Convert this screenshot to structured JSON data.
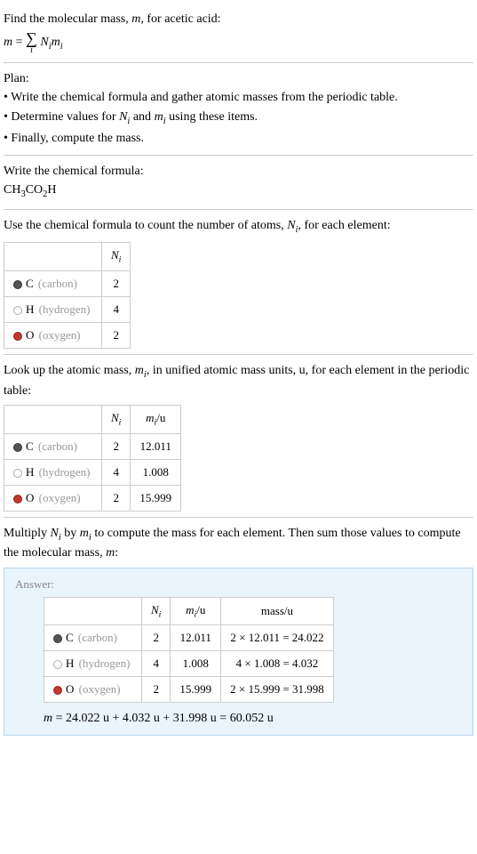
{
  "intro": {
    "prompt": "Find the molecular mass, m, for acetic acid:",
    "formula_lhs": "m",
    "formula_eq": " = ",
    "sigma_sub": "i",
    "formula_rhs": "N_i m_i"
  },
  "plan": {
    "heading": "Plan:",
    "bullets": [
      "Write the chemical formula and gather atomic masses from the periodic table.",
      "Determine values for N_i and m_i using these items.",
      "Finally, compute the mass."
    ]
  },
  "chemFormula": {
    "heading": "Write the chemical formula:",
    "formula_text": "CH_3CO_2H"
  },
  "countSection": {
    "heading": "Use the chemical formula to count the number of atoms, N_i, for each element:",
    "headers": [
      "",
      "N_i"
    ],
    "rows": [
      {
        "dot": "c",
        "sym": "C",
        "name": "(carbon)",
        "n": "2"
      },
      {
        "dot": "h",
        "sym": "H",
        "name": "(hydrogen)",
        "n": "4"
      },
      {
        "dot": "o",
        "sym": "O",
        "name": "(oxygen)",
        "n": "2"
      }
    ]
  },
  "massSection": {
    "heading": "Look up the atomic mass, m_i, in unified atomic mass units, u, for each element in the periodic table:",
    "headers": [
      "",
      "N_i",
      "m_i/u"
    ],
    "rows": [
      {
        "dot": "c",
        "sym": "C",
        "name": "(carbon)",
        "n": "2",
        "m": "12.011"
      },
      {
        "dot": "h",
        "sym": "H",
        "name": "(hydrogen)",
        "n": "4",
        "m": "1.008"
      },
      {
        "dot": "o",
        "sym": "O",
        "name": "(oxygen)",
        "n": "2",
        "m": "15.999"
      }
    ]
  },
  "finalSection": {
    "heading": "Multiply N_i by m_i to compute the mass for each element. Then sum those values to compute the molecular mass, m:",
    "answerLabel": "Answer:",
    "headers": [
      "",
      "N_i",
      "m_i/u",
      "mass/u"
    ],
    "rows": [
      {
        "dot": "c",
        "sym": "C",
        "name": "(carbon)",
        "n": "2",
        "m": "12.011",
        "calc": "2 × 12.011 = 24.022"
      },
      {
        "dot": "h",
        "sym": "H",
        "name": "(hydrogen)",
        "n": "4",
        "m": "1.008",
        "calc": "4 × 1.008 = 4.032"
      },
      {
        "dot": "o",
        "sym": "O",
        "name": "(oxygen)",
        "n": "2",
        "m": "15.999",
        "calc": "2 × 15.999 = 31.998"
      }
    ],
    "finalEq": "m = 24.022 u + 4.032 u + 31.998 u = 60.052 u"
  },
  "colors": {
    "answer_bg": "#eaf4fb",
    "answer_border": "#b8d8ed",
    "muted": "#999999"
  }
}
